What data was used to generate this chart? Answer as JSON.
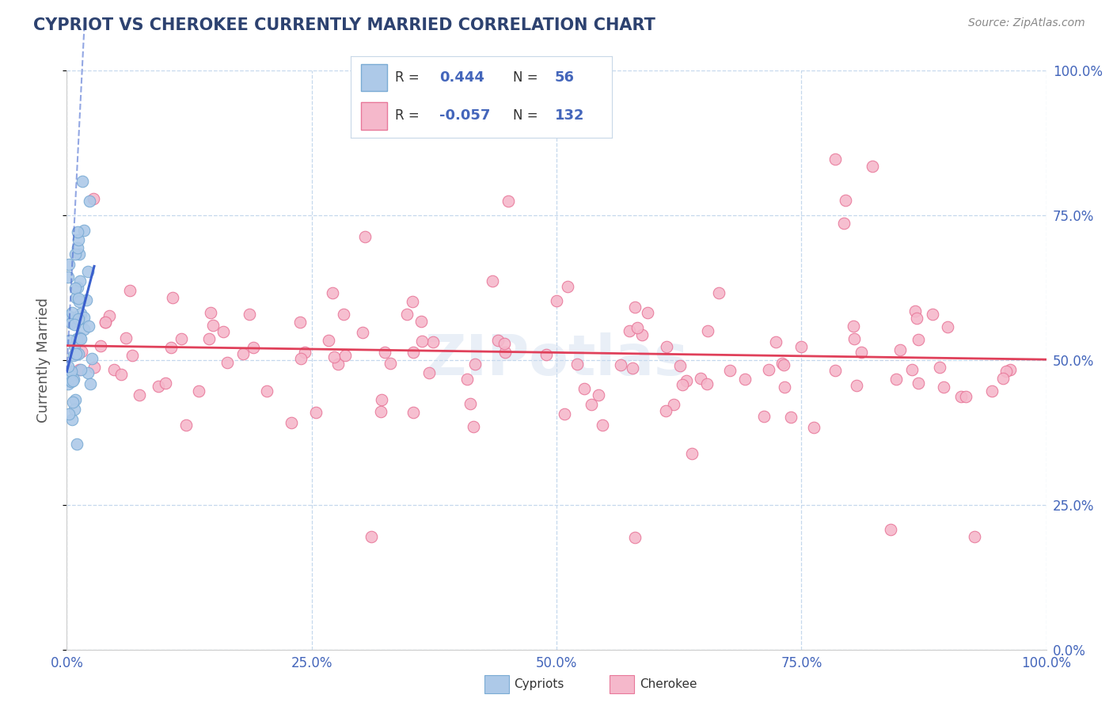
{
  "title": "CYPRIOT VS CHEROKEE CURRENTLY MARRIED CORRELATION CHART",
  "source": "Source: ZipAtlas.com",
  "ylabel": "Currently Married",
  "x_tick_labels": [
    "0.0%",
    "25.0%",
    "50.0%",
    "75.0%",
    "100.0%"
  ],
  "x_tick_positions": [
    0.0,
    0.25,
    0.5,
    0.75,
    1.0
  ],
  "y_tick_labels": [
    "0.0%",
    "25.0%",
    "50.0%",
    "75.0%",
    "100.0%"
  ],
  "y_tick_positions": [
    0.0,
    0.25,
    0.5,
    0.75,
    1.0
  ],
  "cypriot_R": 0.444,
  "cypriot_N": 56,
  "cherokee_R": -0.057,
  "cherokee_N": 132,
  "cypriot_color": "#adc9e8",
  "cypriot_edge": "#7aabd4",
  "cherokee_color": "#f5b8cb",
  "cherokee_edge": "#e8789a",
  "cypriot_trend_color": "#3a5fcd",
  "cherokee_trend_color": "#e0405a",
  "background_color": "#ffffff",
  "grid_color": "#c5d8ed",
  "title_color": "#2d4270",
  "legend_color_cypriot": "#adc9e8",
  "legend_color_cherokee": "#f5b8cb",
  "legend_border": "#c8d8e8",
  "watermark": "ZIPotlas",
  "watermark_color": "#c8d8ed",
  "source_color": "#888888",
  "ylabel_color": "#555555",
  "tick_color": "#4466bb"
}
